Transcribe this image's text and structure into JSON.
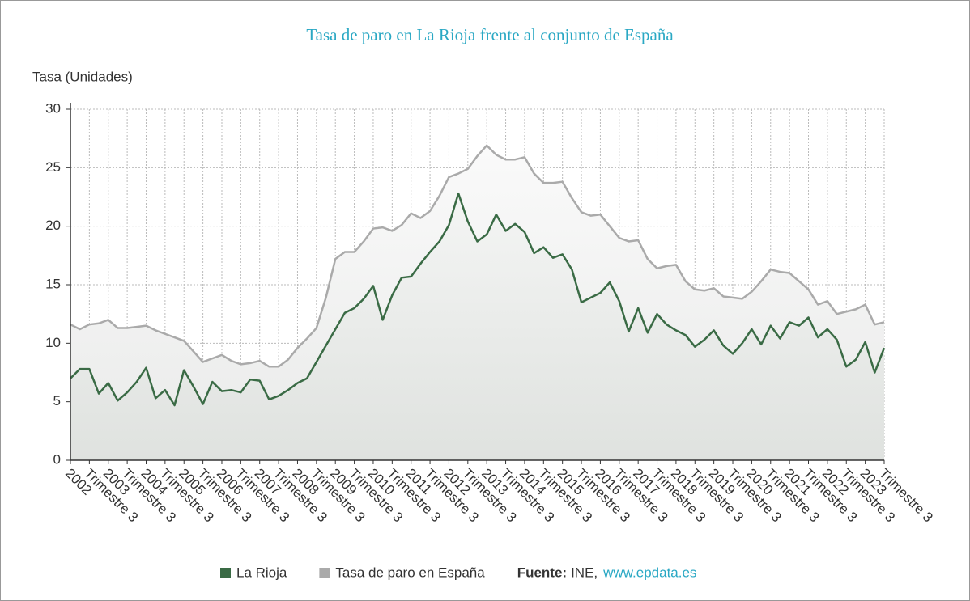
{
  "chart_data": {
    "type": "line",
    "title": "Tasa de paro en La Rioja frente al conjunto de España",
    "y_label": "Tasa (Unidades)",
    "categories": [
      "2002",
      null,
      "Trimestre 3",
      null,
      "2003",
      null,
      "Trimestre 3",
      null,
      "2004",
      null,
      "Trimestre 3",
      null,
      "2005",
      null,
      "Trimestre 3",
      null,
      "2006",
      null,
      "Trimestre 3",
      null,
      "2007",
      null,
      "Trimestre 3",
      null,
      "2008",
      null,
      "Trimestre 3",
      null,
      "2009",
      null,
      "Trimestre 3",
      null,
      "2010",
      null,
      "Trimestre 3",
      null,
      "2011",
      null,
      "Trimestre 3",
      null,
      "2012",
      null,
      "Trimestre 3",
      null,
      "2013",
      null,
      "Trimestre 3",
      null,
      "2014",
      null,
      "Trimestre 3",
      null,
      "2015",
      null,
      "Trimestre 3",
      null,
      "2016",
      null,
      "Trimestre 3",
      null,
      "2017",
      null,
      "Trimestre 3",
      null,
      "2018",
      null,
      "Trimestre 3",
      null,
      "2019",
      null,
      "Trimestre 3",
      null,
      "2020",
      null,
      "Trimestre 3",
      null,
      "2021",
      null,
      "Trimestre 3",
      null,
      "2022",
      null,
      "Trimestre 3",
      null,
      "2023",
      null,
      "Trimestre 3"
    ],
    "series": [
      {
        "name": "La Rioja",
        "color": "#3a6b45",
        "values": [
          7.0,
          7.8,
          7.8,
          5.7,
          6.6,
          5.1,
          5.8,
          6.7,
          7.9,
          5.3,
          6.0,
          4.7,
          7.7,
          6.3,
          4.8,
          6.7,
          5.9,
          6.0,
          5.8,
          6.9,
          6.8,
          5.2,
          5.5,
          6.0,
          6.6,
          7.0,
          8.4,
          9.8,
          11.2,
          12.6,
          13.0,
          13.8,
          14.9,
          12.0,
          14.1,
          15.6,
          15.7,
          16.8,
          17.8,
          18.7,
          20.1,
          22.8,
          20.4,
          18.7,
          19.3,
          21.0,
          19.6,
          20.2,
          19.5,
          17.7,
          18.2,
          17.3,
          17.6,
          16.3,
          13.5,
          13.9,
          14.3,
          15.2,
          13.6,
          11.0,
          13.0,
          10.9,
          12.5,
          11.6,
          11.1,
          10.7,
          9.7,
          10.3,
          11.1,
          9.8,
          9.1,
          10.0,
          11.2,
          9.9,
          11.5,
          10.4,
          11.8,
          11.5,
          12.2,
          10.5,
          11.2,
          10.3,
          8.0,
          8.6,
          10.1,
          7.5,
          9.6
        ]
      },
      {
        "name": "Tasa de paro en España",
        "color": "#aaaaaa",
        "values": [
          11.6,
          11.2,
          11.6,
          11.7,
          12.0,
          11.3,
          11.3,
          11.4,
          11.5,
          11.1,
          10.8,
          10.5,
          10.2,
          9.3,
          8.4,
          8.7,
          9.0,
          8.5,
          8.2,
          8.3,
          8.5,
          8.0,
          8.0,
          8.6,
          9.6,
          10.4,
          11.3,
          13.9,
          17.2,
          17.8,
          17.8,
          18.7,
          19.8,
          19.9,
          19.6,
          20.1,
          21.1,
          20.7,
          21.3,
          22.6,
          24.2,
          24.5,
          24.9,
          26.0,
          26.9,
          26.1,
          25.7,
          25.7,
          25.9,
          24.5,
          23.7,
          23.7,
          23.8,
          22.4,
          21.2,
          20.9,
          21.0,
          20.0,
          19.0,
          18.7,
          18.8,
          17.2,
          16.4,
          16.6,
          16.7,
          15.3,
          14.6,
          14.5,
          14.7,
          14.0,
          13.9,
          13.8,
          14.4,
          15.3,
          16.3,
          16.1,
          16.0,
          15.3,
          14.6,
          13.3,
          13.6,
          12.5,
          12.7,
          12.9,
          13.3,
          11.6,
          11.8
        ]
      }
    ],
    "ylim": [
      0,
      30
    ],
    "yticks": [
      0,
      5,
      10,
      15,
      20,
      25,
      30
    ],
    "grid": true,
    "source": {
      "label": "Fuente:",
      "text": "INE,",
      "link": "www.epdata.es"
    }
  }
}
